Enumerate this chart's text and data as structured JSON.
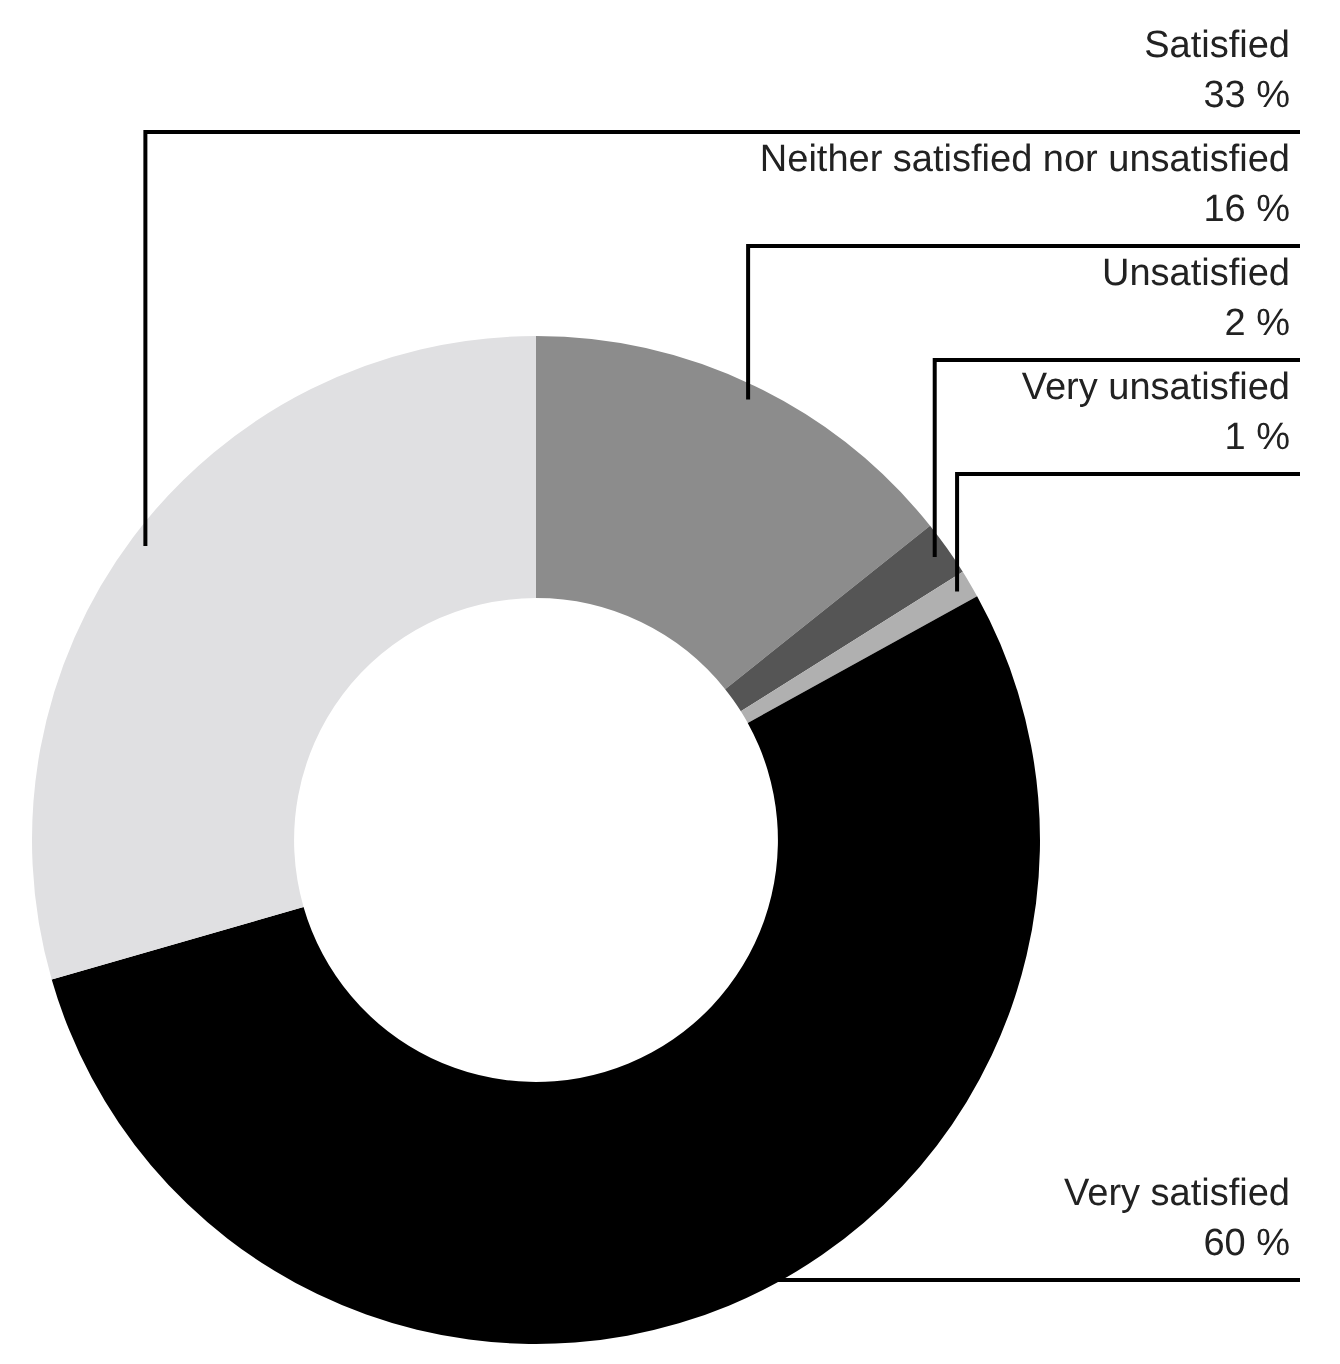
{
  "chart_data": {
    "type": "donut",
    "categories": [
      "Neither satisfied nor unsatisfied",
      "Unsatisfied",
      "Very unsatisfied",
      "Very satisfied",
      "Satisfied"
    ],
    "values": [
      16,
      2,
      1,
      60,
      33
    ],
    "value_labels": [
      "16 %",
      "2 %",
      "1 %",
      "60 %",
      "33 %"
    ],
    "colors": [
      "#8c8c8c",
      "#555555",
      "#b0b0b0",
      "#000000",
      "#e0e0e2"
    ],
    "legend": false
  }
}
